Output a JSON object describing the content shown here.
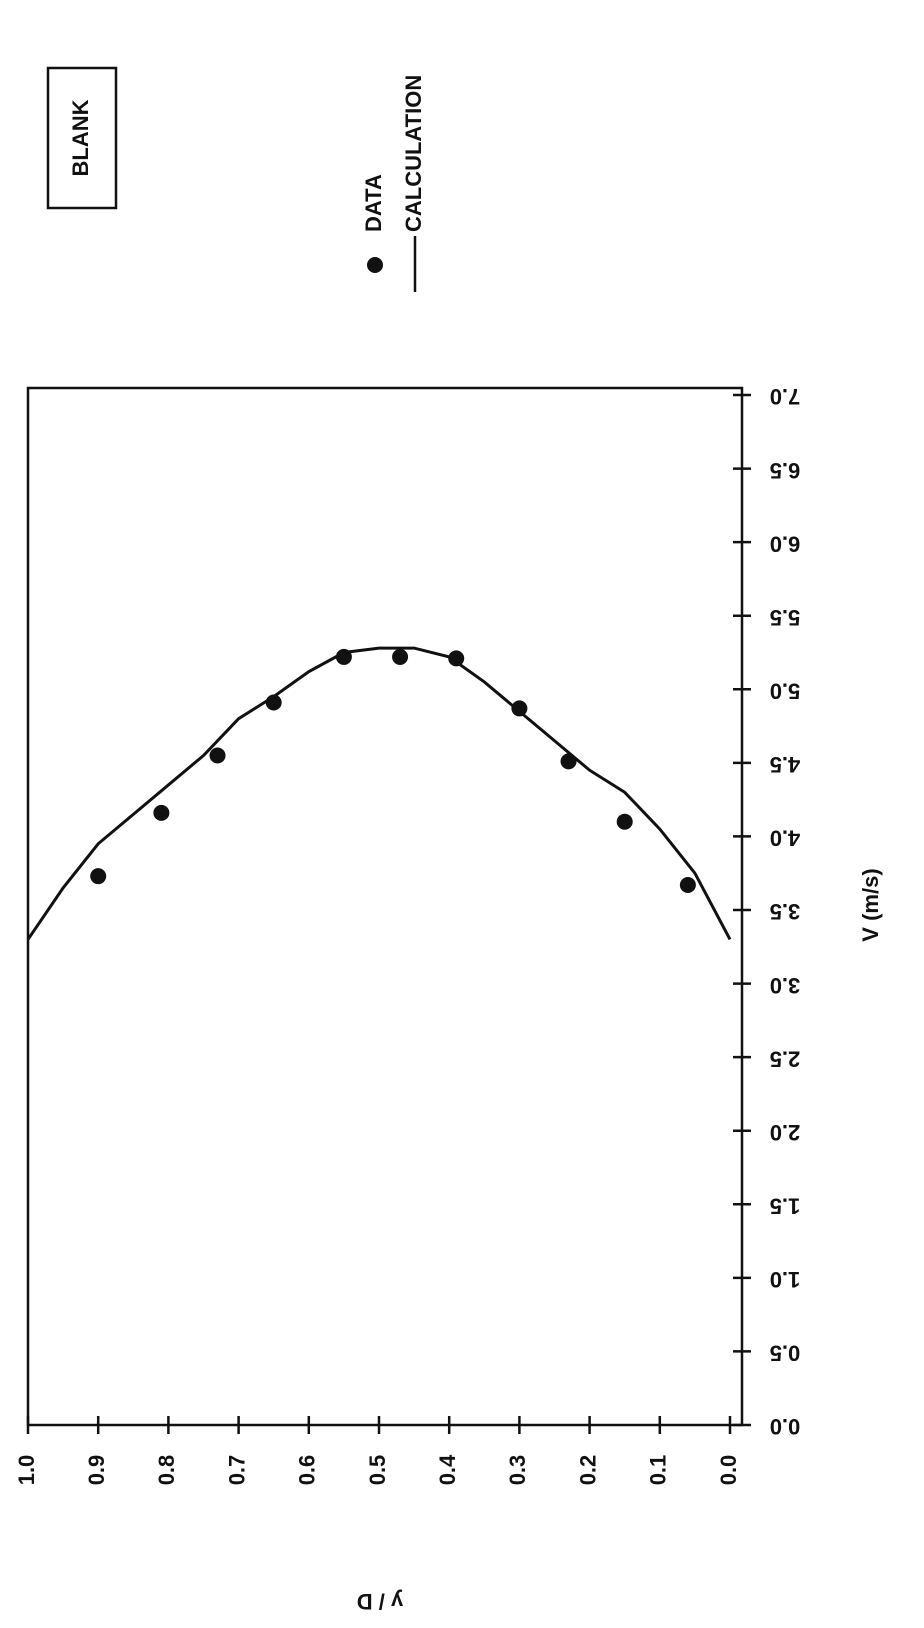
{
  "chart_data": {
    "type": "scatter",
    "label_box": "BLANK",
    "xlabel": "y / D",
    "ylabel": "V (m/s)",
    "xlim": [
      0,
      1
    ],
    "ylim": [
      0,
      7
    ],
    "xticks": [
      {
        "value": 0,
        "label": "0.0"
      },
      {
        "value": 0.1,
        "label": "0.1"
      },
      {
        "value": 0.2,
        "label": "0.2"
      },
      {
        "value": 0.3,
        "label": "0.3"
      },
      {
        "value": 0.4,
        "label": "0.4"
      },
      {
        "value": 0.5,
        "label": "0.5"
      },
      {
        "value": 0.6,
        "label": "0.6"
      },
      {
        "value": 0.7,
        "label": "0.7"
      },
      {
        "value": 0.8,
        "label": "0.8"
      },
      {
        "value": 0.9,
        "label": "0.9"
      },
      {
        "value": 1,
        "label": "1.0"
      }
    ],
    "yticks": [
      {
        "value": 0,
        "label": "0.0"
      },
      {
        "value": 0.5,
        "label": "0.5"
      },
      {
        "value": 1,
        "label": "1.0"
      },
      {
        "value": 1.5,
        "label": "1.5"
      },
      {
        "value": 2,
        "label": "2.0"
      },
      {
        "value": 2.5,
        "label": "2.5"
      },
      {
        "value": 3,
        "label": "3.0"
      },
      {
        "value": 3.5,
        "label": "3.5"
      },
      {
        "value": 4,
        "label": "4.0"
      },
      {
        "value": 4.5,
        "label": "4.5"
      },
      {
        "value": 5,
        "label": "5.0"
      },
      {
        "value": 5.5,
        "label": "5.5"
      },
      {
        "value": 6,
        "label": "6.0"
      },
      {
        "value": 6.5,
        "label": "6.5"
      },
      {
        "value": 7,
        "label": "7.0"
      }
    ],
    "series": [
      {
        "name": "DATA",
        "type": "scatter",
        "color": "#111111",
        "x": [
          0.06,
          0.15,
          0.23,
          0.3,
          0.39,
          0.47,
          0.55,
          0.65,
          0.73,
          0.81,
          0.9
        ],
        "values": [
          3.67,
          4.1,
          4.51,
          4.87,
          5.21,
          5.22,
          5.22,
          4.91,
          4.55,
          4.16,
          3.73
        ]
      },
      {
        "name": "CALCULATION",
        "type": "line",
        "color": "#111111",
        "x": [
          0,
          0.05,
          0.1,
          0.15,
          0.2,
          0.25,
          0.3,
          0.35,
          0.4,
          0.45,
          0.5,
          0.55,
          0.6,
          0.65,
          0.7,
          0.75,
          0.8,
          0.85,
          0.9,
          0.95,
          1
        ],
        "values": [
          3.3,
          3.75,
          4.05,
          4.3,
          4.45,
          4.65,
          4.85,
          5.05,
          5.22,
          5.28,
          5.28,
          5.25,
          5.12,
          4.95,
          4.8,
          4.55,
          4.35,
          4.15,
          3.95,
          3.65,
          3.3
        ]
      }
    ]
  }
}
